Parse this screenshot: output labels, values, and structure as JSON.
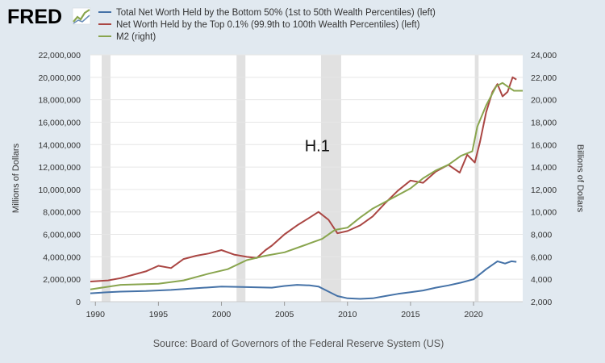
{
  "header": {
    "logo": "FRED",
    "logo_icon": "fred-chart-icon"
  },
  "source": "Source: Board of Governors of the Federal Reserve System (US)",
  "colors": {
    "background": "#e1e9f0",
    "plot": "#ffffff",
    "grid": "#e6e6e6",
    "recession": "#e1e1e1",
    "bottom50": "#4572a7",
    "top01": "#aa4643",
    "m2": "#89a54e",
    "logo": "#000000"
  },
  "chart_data": {
    "type": "line",
    "title": "",
    "annotations": [
      {
        "text": "H.1",
        "x": 2007.6,
        "y": 13400000
      }
    ],
    "xlabel": "",
    "xlim": [
      1989.6,
      2023.9
    ],
    "xticks": [
      "1990",
      "1995",
      "2000",
      "2005",
      "2010",
      "2015",
      "2020"
    ],
    "y_left": {
      "label": "Millions of Dollars",
      "lim": [
        0,
        22000000
      ],
      "ticks": [
        "0",
        "2,000,000",
        "4,000,000",
        "6,000,000",
        "8,000,000",
        "10,000,000",
        "12,000,000",
        "14,000,000",
        "16,000,000",
        "18,000,000",
        "20,000,000",
        "22,000,000"
      ]
    },
    "y_right": {
      "label": "Billions of Dollars",
      "lim": [
        2000,
        24000
      ],
      "ticks": [
        "2,000",
        "4,000",
        "6,000",
        "8,000",
        "10,000",
        "12,000",
        "14,000",
        "16,000",
        "18,000",
        "20,000",
        "22,000",
        "24,000"
      ]
    },
    "grid": true,
    "legend_position": "top",
    "recessions": [
      [
        1990.5,
        1991.2
      ],
      [
        2001.2,
        2001.9
      ],
      [
        2007.9,
        2009.5
      ],
      [
        2020.1,
        2020.4
      ]
    ],
    "series": [
      {
        "name": "Total Net Worth Held by the Bottom 50% (1st to 50th Wealth Percentiles) (left)",
        "axis": "left",
        "x": [
          1989.6,
          1991,
          1992,
          1994,
          1996,
          1998,
          2000,
          2002,
          2004,
          2005,
          2006,
          2007,
          2007.7,
          2008.5,
          2009.2,
          2010,
          2011,
          2012,
          2013,
          2014,
          2015,
          2016,
          2017,
          2018,
          2019,
          2020,
          2021,
          2021.9,
          2022.5,
          2023,
          2023.4
        ],
        "y": [
          750000,
          850000,
          900000,
          950000,
          1050000,
          1200000,
          1350000,
          1300000,
          1250000,
          1400000,
          1500000,
          1450000,
          1350000,
          900000,
          500000,
          300000,
          250000,
          300000,
          500000,
          700000,
          850000,
          1000000,
          1250000,
          1450000,
          1700000,
          2000000,
          2900000,
          3600000,
          3400000,
          3600000,
          3550000
        ]
      },
      {
        "name": "Net Worth Held by the Top 0.1% (99.9th to 100th Wealth Percentiles) (left)",
        "axis": "left",
        "x": [
          1989.6,
          1991,
          1992,
          1993,
          1994,
          1995,
          1996,
          1997,
          1998,
          1999,
          2000,
          2001,
          2002,
          2002.8,
          2003.5,
          2004,
          2005,
          2006,
          2007,
          2007.7,
          2008.5,
          2009.2,
          2010,
          2011,
          2012,
          2013,
          2014,
          2015,
          2016,
          2017,
          2018,
          2018.9,
          2019.5,
          2020.1,
          2020.5,
          2021,
          2021.5,
          2021.9,
          2022.3,
          2022.7,
          2023.1,
          2023.4
        ],
        "y": [
          1800000,
          1900000,
          2100000,
          2400000,
          2700000,
          3200000,
          3000000,
          3800000,
          4100000,
          4300000,
          4600000,
          4200000,
          4000000,
          3900000,
          4600000,
          5000000,
          6000000,
          6800000,
          7500000,
          8000000,
          7300000,
          6100000,
          6300000,
          6800000,
          7600000,
          8800000,
          9900000,
          10800000,
          10600000,
          11600000,
          12200000,
          11500000,
          13100000,
          12400000,
          14200000,
          16900000,
          18700000,
          19400000,
          18300000,
          18700000,
          20000000,
          19800000
        ]
      },
      {
        "name": "M2 (right)",
        "axis": "right",
        "x": [
          1989.6,
          1992,
          1995,
          1997,
          1999,
          2000.5,
          2002,
          2003.5,
          2005,
          2006.5,
          2008,
          2009,
          2010,
          2011,
          2012,
          2013,
          2014,
          2015,
          2016,
          2017,
          2018,
          2019,
          2019.9,
          2020.3,
          2021,
          2021.8,
          2022.3,
          2022.8,
          2023.2,
          2023.6,
          2023.9
        ],
        "y": [
          3100,
          3500,
          3600,
          3900,
          4500,
          4900,
          5700,
          6100,
          6400,
          7000,
          7600,
          8400,
          8600,
          9500,
          10300,
          10900,
          11500,
          12100,
          13000,
          13700,
          14200,
          15000,
          15400,
          17600,
          19500,
          21200,
          21500,
          21100,
          20800,
          20800,
          20800
        ]
      }
    ]
  }
}
